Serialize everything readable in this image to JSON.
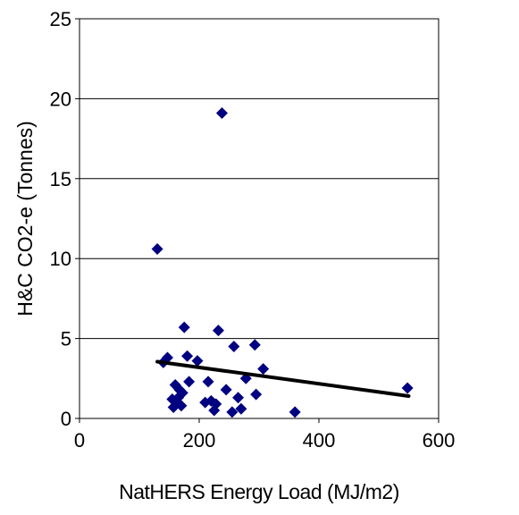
{
  "chart_data": {
    "type": "scatter",
    "title": "",
    "xlabel": "NatHERS Energy Load (MJ/m2)",
    "ylabel": "H&C CO2-e (Tonnes)",
    "xlim": [
      0,
      600
    ],
    "ylim": [
      0,
      25
    ],
    "x_ticks": [
      "0",
      "200",
      "400",
      "600"
    ],
    "y_ticks": [
      "0",
      "5",
      "10",
      "15",
      "20",
      "25"
    ],
    "grid": "horizontal",
    "legend": "none",
    "colors": {
      "marker": "#000080",
      "trendline": "#000000",
      "grid": "#000000"
    },
    "marker": "diamond",
    "series": [
      {
        "points": [
          {
            "x": 130,
            "y": 10.6
          },
          {
            "x": 140,
            "y": 3.5
          },
          {
            "x": 147,
            "y": 3.8
          },
          {
            "x": 155,
            "y": 1.2
          },
          {
            "x": 157,
            "y": 0.7
          },
          {
            "x": 160,
            "y": 2.1
          },
          {
            "x": 163,
            "y": 1.0
          },
          {
            "x": 165,
            "y": 1.3
          },
          {
            "x": 167,
            "y": 1.8
          },
          {
            "x": 170,
            "y": 0.8
          },
          {
            "x": 172,
            "y": 1.6
          },
          {
            "x": 175,
            "y": 5.7
          },
          {
            "x": 180,
            "y": 3.9
          },
          {
            "x": 183,
            "y": 2.3
          },
          {
            "x": 197,
            "y": 3.6
          },
          {
            "x": 210,
            "y": 1.0
          },
          {
            "x": 215,
            "y": 2.3
          },
          {
            "x": 220,
            "y": 1.1
          },
          {
            "x": 225,
            "y": 0.5
          },
          {
            "x": 228,
            "y": 0.9
          },
          {
            "x": 232,
            "y": 5.5
          },
          {
            "x": 238,
            "y": 19.1
          },
          {
            "x": 245,
            "y": 1.8
          },
          {
            "x": 255,
            "y": 0.4
          },
          {
            "x": 258,
            "y": 4.5
          },
          {
            "x": 265,
            "y": 1.3
          },
          {
            "x": 270,
            "y": 0.6
          },
          {
            "x": 278,
            "y": 2.5
          },
          {
            "x": 293,
            "y": 4.6
          },
          {
            "x": 295,
            "y": 1.5
          },
          {
            "x": 307,
            "y": 3.1
          },
          {
            "x": 360,
            "y": 0.4
          },
          {
            "x": 548,
            "y": 1.9
          }
        ]
      }
    ],
    "trendline": {
      "x": [
        130,
        550
      ],
      "y": [
        3.55,
        1.4
      ]
    }
  }
}
